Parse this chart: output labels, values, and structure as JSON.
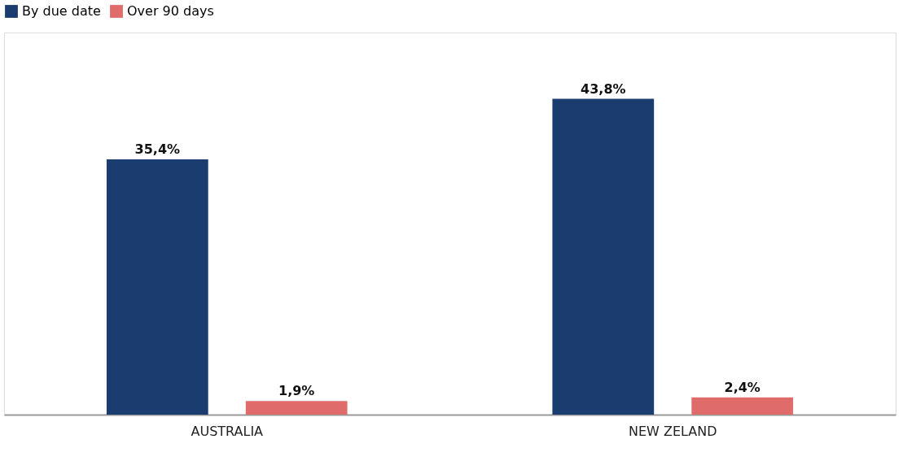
{
  "chart_data": {
    "type": "bar",
    "categories": [
      "AUSTRALIA",
      "NEW ZELAND"
    ],
    "series": [
      {
        "name": "By due date",
        "color": "#1b3c6e",
        "values": [
          35.4,
          43.8
        ],
        "value_labels": [
          "35,4%",
          "43,8%"
        ]
      },
      {
        "name": "Over 90 days",
        "color": "#e06b6b",
        "values": [
          1.9,
          2.4
        ],
        "value_labels": [
          "1,9%",
          "2,4%"
        ]
      }
    ],
    "legend": "top",
    "grid": false
  }
}
